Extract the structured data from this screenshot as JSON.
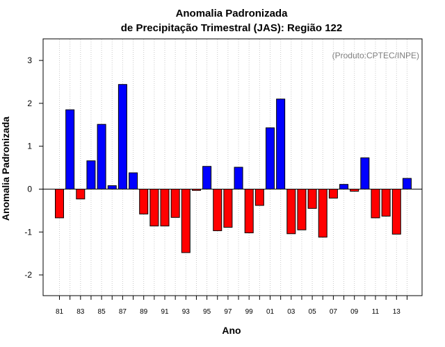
{
  "chart_data": {
    "type": "bar",
    "title": "Anomalia Padronizada",
    "subtitle": "de Precipitação Trimestral (JAS): Região 122",
    "xlabel": "Ano",
    "ylabel": "Anomalia Padronizada",
    "annotation": "(Produto:CPTEC/INPE)",
    "ylim": [
      -2.5,
      3.5
    ],
    "yticks": [
      -2,
      -1,
      0,
      1,
      2,
      3
    ],
    "xtick_labels": [
      "81",
      "83",
      "85",
      "87",
      "89",
      "91",
      "93",
      "95",
      "97",
      "99",
      "01",
      "03",
      "05",
      "07",
      "09",
      "11",
      "13"
    ],
    "categories": [
      "1981",
      "1982",
      "1983",
      "1984",
      "1985",
      "1986",
      "1987",
      "1988",
      "1989",
      "1990",
      "1991",
      "1992",
      "1993",
      "1994",
      "1995",
      "1996",
      "1997",
      "1998",
      "1999",
      "2000",
      "2001",
      "2002",
      "2003",
      "2004",
      "2005",
      "2006",
      "2007",
      "2008",
      "2009",
      "2010",
      "2011",
      "2012",
      "2013",
      "2014"
    ],
    "values": [
      -0.67,
      1.85,
      -0.23,
      0.66,
      1.51,
      0.08,
      2.44,
      0.38,
      -0.58,
      -0.86,
      -0.86,
      -0.66,
      -1.48,
      -0.03,
      0.53,
      -0.97,
      -0.89,
      0.51,
      -1.02,
      -0.38,
      1.43,
      2.1,
      -1.04,
      -0.95,
      -0.45,
      -1.12,
      -0.21,
      0.11,
      -0.05,
      0.73,
      -0.67,
      -0.63,
      -1.05,
      0.25
    ],
    "positive_color": "#0000ff",
    "negative_color": "#ff0000",
    "grid": "vertical dotted",
    "legend": "none"
  }
}
